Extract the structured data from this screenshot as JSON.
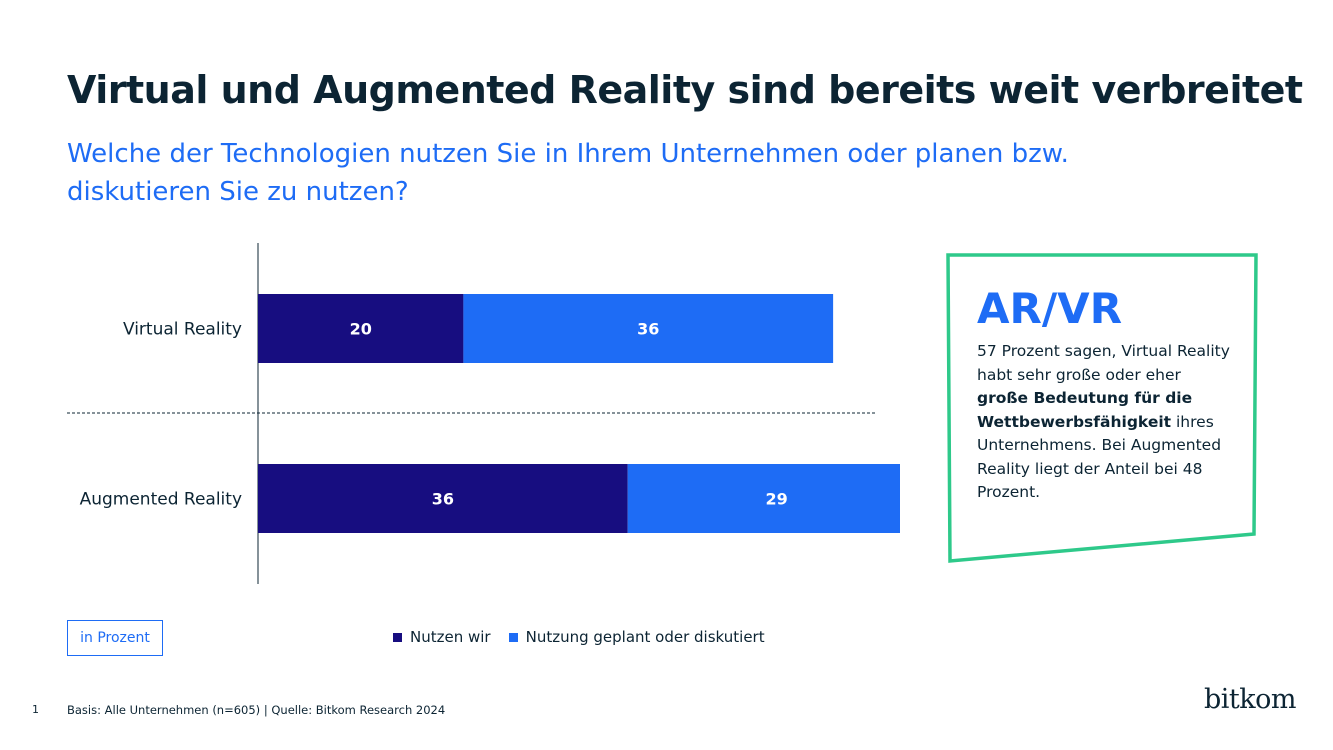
{
  "page": {
    "title": "Virtual und Augmented Reality sind bereits weit verbreitet",
    "subtitle": "Welche der Technologien nutzen Sie in Ihrem Unternehmen oder planen bzw. diskutieren Sie zu nutzen?"
  },
  "chart_data": {
    "type": "bar",
    "orientation": "horizontal",
    "stacked": true,
    "categories": [
      "Virtual Reality",
      "Augmented Reality"
    ],
    "series": [
      {
        "name": "Nutzen wir",
        "values": [
          20,
          36
        ],
        "color": "#170d80"
      },
      {
        "name": "Nutzung geplant oder diskutiert",
        "values": [
          36,
          29
        ],
        "color": "#1e6cf5"
      }
    ],
    "unit_label": "in Prozent",
    "legend_position": "bottom",
    "grid": false
  },
  "callout": {
    "heading": "AR/VR",
    "text_before": "57 Prozent sagen, Virtual Reality habt sehr große oder eher ",
    "text_bold": "große Bedeutung für die Wettbewerbsfähigkeit",
    "text_after": " ihres Unternehmens. Bei Augmented Reality liegt der Anteil bei 48 Prozent.",
    "border_color": "#2ec98a"
  },
  "footer": {
    "page_number": "1",
    "source": "Basis: Alle Unternehmen (n=605) | Quelle: Bitkom Research 2024",
    "logo_text": "bitkom"
  }
}
